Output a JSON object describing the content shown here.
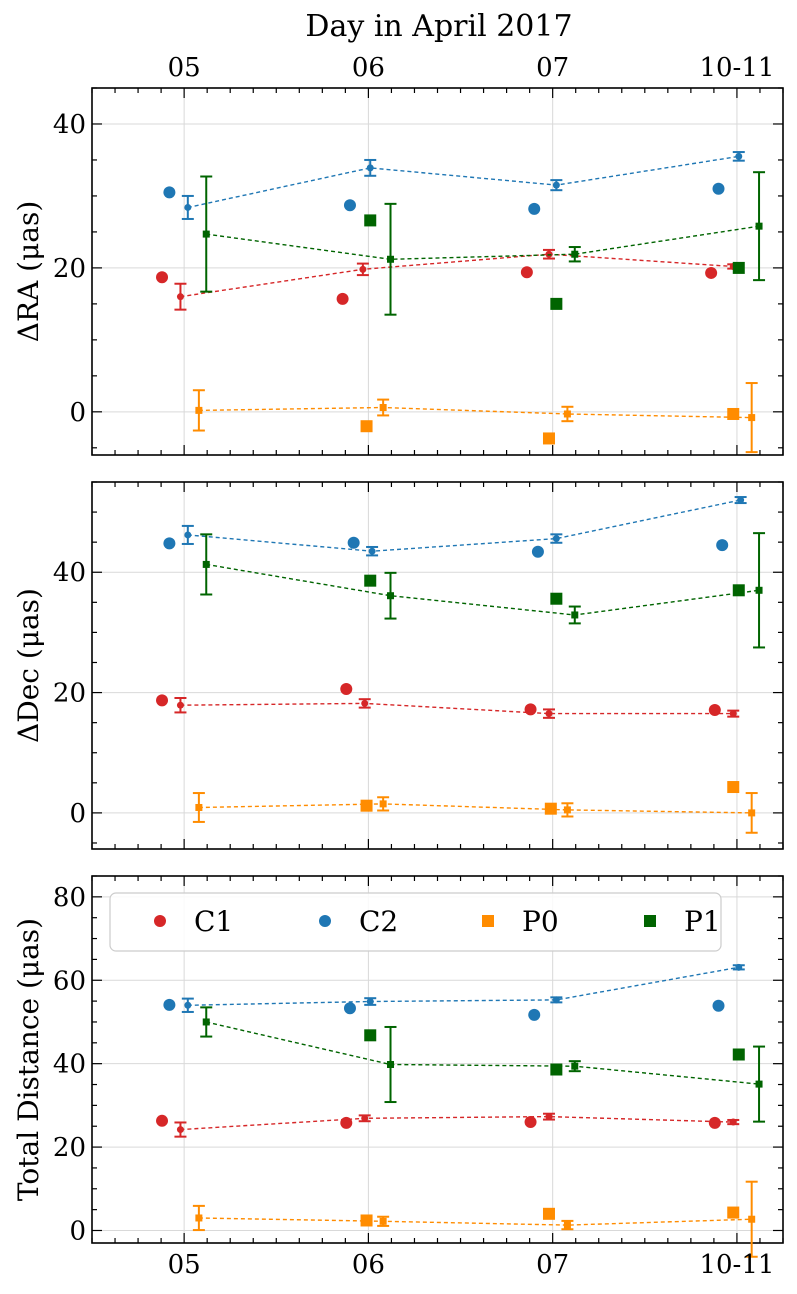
{
  "chart_data": {
    "type": "scatter",
    "top_axis": {
      "label": "Day in April 2017",
      "categories": [
        "05",
        "06",
        "07",
        "10-11"
      ]
    },
    "categories": [
      "05",
      "06",
      "07",
      "10-11"
    ],
    "legend": {
      "position": "top",
      "entries": [
        {
          "name": "C1",
          "marker": "circle",
          "color": "#d62728"
        },
        {
          "name": "C2",
          "marker": "circle",
          "color": "#1f77b4"
        },
        {
          "name": "P0",
          "marker": "square",
          "color": "#ff8c00"
        },
        {
          "name": "P1",
          "marker": "square",
          "color": "#006400"
        }
      ]
    },
    "grid": true,
    "panels": [
      {
        "id": "ra",
        "ylabel": "ΔRA (μas)",
        "ylim": [
          -6,
          45
        ],
        "yticks": [
          0,
          20,
          40
        ],
        "series": [
          {
            "name": "C1",
            "color": "#d62728",
            "marker": "circle",
            "points": [
              [
                -0.12,
                18.7
              ],
              [
                0.86,
                15.7
              ],
              [
                1.86,
                19.4
              ],
              [
                2.86,
                19.3
              ]
            ],
            "fit": [
              [
                -0.02,
                16.0,
                1.8
              ],
              [
                0.97,
                19.8,
                0.8
              ],
              [
                1.98,
                21.9,
                0.6
              ],
              [
                2.98,
                20.2,
                0.3
              ]
            ]
          },
          {
            "name": "C2",
            "color": "#1f77b4",
            "marker": "circle",
            "points": [
              [
                -0.08,
                30.5
              ],
              [
                0.9,
                28.7
              ],
              [
                1.9,
                28.2
              ],
              [
                2.9,
                31.0
              ]
            ],
            "fit": [
              [
                0.02,
                28.4,
                1.6
              ],
              [
                1.01,
                33.9,
                1.1
              ],
              [
                2.02,
                31.5,
                0.7
              ],
              [
                3.01,
                35.5,
                0.6
              ]
            ]
          },
          {
            "name": "P0",
            "color": "#ff8c00",
            "marker": "square",
            "points": [
              [
                0.99,
                -2.0
              ],
              [
                1.98,
                -3.7
              ],
              [
                2.98,
                -0.3
              ]
            ],
            "fit": [
              [
                0.08,
                0.2,
                2.8
              ],
              [
                1.08,
                0.6,
                1.1
              ],
              [
                2.08,
                -0.3,
                1.0
              ],
              [
                3.08,
                -0.8,
                4.8
              ]
            ]
          },
          {
            "name": "P1",
            "color": "#006400",
            "marker": "square",
            "points": [
              [
                1.01,
                26.6
              ],
              [
                2.02,
                15.0
              ],
              [
                3.01,
                20.0
              ]
            ],
            "fit": [
              [
                0.12,
                24.7,
                8.0
              ],
              [
                1.12,
                21.2,
                7.7
              ],
              [
                2.12,
                21.9,
                1.0
              ],
              [
                3.12,
                25.8,
                7.5
              ]
            ]
          }
        ]
      },
      {
        "id": "dec",
        "ylabel": "ΔDec (μas)",
        "ylim": [
          -6,
          55
        ],
        "yticks": [
          0,
          20,
          40
        ],
        "series": [
          {
            "name": "C1",
            "color": "#d62728",
            "marker": "circle",
            "points": [
              [
                -0.12,
                18.7
              ],
              [
                0.88,
                20.6
              ],
              [
                1.88,
                17.2
              ],
              [
                2.88,
                17.1
              ]
            ],
            "fit": [
              [
                -0.02,
                17.9,
                1.2
              ],
              [
                0.98,
                18.2,
                0.7
              ],
              [
                1.98,
                16.5,
                0.7
              ],
              [
                2.98,
                16.5,
                0.5
              ]
            ]
          },
          {
            "name": "C2",
            "color": "#1f77b4",
            "marker": "circle",
            "points": [
              [
                -0.08,
                44.8
              ],
              [
                0.92,
                44.9
              ],
              [
                1.92,
                43.4
              ],
              [
                2.92,
                44.5
              ]
            ],
            "fit": [
              [
                0.02,
                46.2,
                1.5
              ],
              [
                1.02,
                43.5,
                0.7
              ],
              [
                2.02,
                45.6,
                0.7
              ],
              [
                3.02,
                52.0,
                0.5
              ]
            ]
          },
          {
            "name": "P0",
            "color": "#ff8c00",
            "marker": "square",
            "points": [
              [
                0.99,
                1.2
              ],
              [
                1.99,
                0.7
              ],
              [
                2.98,
                4.3
              ]
            ],
            "fit": [
              [
                0.08,
                0.9,
                2.4
              ],
              [
                1.08,
                1.5,
                1.1
              ],
              [
                2.08,
                0.5,
                1.1
              ],
              [
                3.08,
                0.0,
                3.3
              ]
            ]
          },
          {
            "name": "P1",
            "color": "#006400",
            "marker": "square",
            "points": [
              [
                1.01,
                38.6
              ],
              [
                2.02,
                35.6
              ],
              [
                3.01,
                37.0
              ]
            ],
            "fit": [
              [
                0.12,
                41.3,
                5.0
              ],
              [
                1.12,
                36.1,
                3.8
              ],
              [
                2.12,
                32.9,
                1.4
              ],
              [
                3.12,
                37.0,
                9.5
              ]
            ]
          }
        ]
      },
      {
        "id": "total",
        "ylabel": "Total Distance (μas)",
        "ylim": [
          -3,
          85
        ],
        "yticks": [
          0,
          20,
          40,
          60,
          80
        ],
        "series": [
          {
            "name": "C1",
            "color": "#d62728",
            "marker": "circle",
            "points": [
              [
                -0.12,
                26.3
              ],
              [
                0.88,
                25.8
              ],
              [
                1.88,
                26.0
              ],
              [
                2.88,
                25.8
              ]
            ],
            "fit": [
              [
                -0.02,
                24.2,
                1.7
              ],
              [
                0.98,
                26.9,
                0.7
              ],
              [
                1.98,
                27.3,
                0.7
              ],
              [
                2.98,
                26.0,
                0.5
              ]
            ]
          },
          {
            "name": "C2",
            "color": "#1f77b4",
            "marker": "circle",
            "points": [
              [
                -0.08,
                54.1
              ],
              [
                0.9,
                53.3
              ],
              [
                1.9,
                51.7
              ],
              [
                2.9,
                53.9
              ]
            ],
            "fit": [
              [
                0.02,
                54.0,
                1.6
              ],
              [
                1.01,
                54.9,
                0.8
              ],
              [
                2.02,
                55.3,
                0.6
              ],
              [
                3.01,
                63.1,
                0.5
              ]
            ]
          },
          {
            "name": "P0",
            "color": "#ff8c00",
            "marker": "square",
            "points": [
              [
                0.99,
                2.4
              ],
              [
                1.98,
                4.0
              ],
              [
                2.98,
                4.3
              ]
            ],
            "fit": [
              [
                0.08,
                3.0,
                2.9
              ],
              [
                1.08,
                2.2,
                1.1
              ],
              [
                2.08,
                1.3,
                1.0
              ],
              [
                3.08,
                2.7,
                9.0
              ]
            ]
          },
          {
            "name": "P1",
            "color": "#006400",
            "marker": "square",
            "points": [
              [
                1.01,
                46.8
              ],
              [
                2.02,
                38.6
              ],
              [
                3.01,
                42.2
              ]
            ],
            "fit": [
              [
                0.12,
                50.0,
                3.5
              ],
              [
                1.12,
                39.8,
                9.0
              ],
              [
                2.12,
                39.4,
                1.2
              ],
              [
                3.12,
                35.1,
                9.0
              ]
            ]
          }
        ]
      }
    ]
  }
}
